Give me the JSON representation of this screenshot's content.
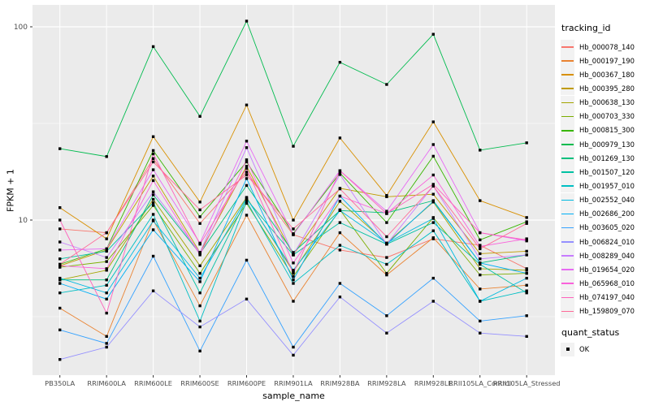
{
  "chart_data": {
    "type": "line",
    "title": "",
    "xlabel": "sample_name",
    "ylabel": "FPKM + 1",
    "y_scale": "log10",
    "ylim": [
      1.55,
      130
    ],
    "grid": "on",
    "legend_position": "right",
    "marker": "black-square",
    "y_ticks": [
      {
        "value": 10,
        "label": "10"
      },
      {
        "value": 100,
        "label": "100"
      }
    ],
    "y_minor_breaks": [
      3.162,
      31.62
    ],
    "categories": [
      "PB350LA",
      "RRIM600LA",
      "RRIM600LE",
      "RRIM600SE",
      "RRIM600PE",
      "RRIM901LA",
      "RRIM928BA",
      "RRIM928LA",
      "RRIM928LE",
      "RRII105LA_Control",
      "RRII105LA_Stressed"
    ],
    "series": [
      {
        "name": "Hb_000078_140",
        "color": "#F8766D",
        "values": [
          9.0,
          8.6,
          20.8,
          9.6,
          17.7,
          8.4,
          7.0,
          6.4,
          8.0,
          7.4,
          5.6
        ]
      },
      {
        "name": "Hb_000197_190",
        "color": "#EA8331",
        "values": [
          3.5,
          2.5,
          10.0,
          3.6,
          10.6,
          3.8,
          8.6,
          5.2,
          8.1,
          4.4,
          4.6
        ]
      },
      {
        "name": "Hb_000367_180",
        "color": "#D89000",
        "values": [
          11.6,
          8.0,
          27.0,
          12.4,
          39.4,
          10.0,
          26.6,
          13.4,
          32.2,
          12.6,
          10.3
        ]
      },
      {
        "name": "Hb_000395_280",
        "color": "#C09B00",
        "values": [
          5.8,
          7.0,
          16.9,
          6.8,
          19.0,
          6.6,
          14.6,
          13.2,
          13.6,
          6.7,
          6.9
        ]
      },
      {
        "name": "Hb_000638_130",
        "color": "#A3A500",
        "values": [
          4.9,
          5.5,
          12.8,
          5.8,
          13.1,
          5.4,
          12.5,
          7.6,
          12.4,
          5.6,
          5.5
        ]
      },
      {
        "name": "Hb_000703_330",
        "color": "#7CAE00",
        "values": [
          5.7,
          6.1,
          11.9,
          5.3,
          12.2,
          5.1,
          11.3,
          5.3,
          10.3,
          5.2,
          5.3
        ]
      },
      {
        "name": "Hb_000815_300",
        "color": "#39B600",
        "values": [
          5.9,
          7.1,
          22.9,
          10.4,
          20.0,
          8.5,
          17.5,
          9.7,
          21.4,
          7.9,
          9.8
        ]
      },
      {
        "name": "Hb_000979_130",
        "color": "#00BB4E",
        "values": [
          23.4,
          21.3,
          79.0,
          34.4,
          107.0,
          24.1,
          65.5,
          50.3,
          91.5,
          23.0,
          25.1
        ]
      },
      {
        "name": "Hb_001269_130",
        "color": "#00BF7D",
        "values": [
          4.9,
          4.9,
          13.5,
          6.7,
          15.1,
          6.8,
          11.2,
          10.9,
          12.6,
          6.0,
          6.6
        ]
      },
      {
        "name": "Hb_001507_120",
        "color": "#00C1A3",
        "values": [
          6.3,
          6.9,
          12.3,
          4.2,
          12.8,
          6.6,
          9.7,
          7.5,
          9.7,
          5.9,
          4.2
        ]
      },
      {
        "name": "Hb_001957_010",
        "color": "#00BFC4",
        "values": [
          4.2,
          4.6,
          10.7,
          3.0,
          12.5,
          4.7,
          7.4,
          5.9,
          8.8,
          3.8,
          4.3
        ]
      },
      {
        "name": "Hb_002552_040",
        "color": "#00BAE0",
        "values": [
          5.0,
          4.2,
          9.9,
          5.0,
          13.0,
          5.5,
          11.2,
          7.6,
          10.2,
          3.8,
          5.0
        ]
      },
      {
        "name": "Hb_002686_200",
        "color": "#00B0F6",
        "values": [
          4.7,
          3.9,
          8.9,
          4.8,
          16.4,
          4.9,
          13.3,
          7.5,
          12.5,
          6.0,
          5.3
        ]
      },
      {
        "name": "Hb_003605_020",
        "color": "#35A2FF",
        "values": [
          2.7,
          2.3,
          6.5,
          2.1,
          6.2,
          2.2,
          4.7,
          3.2,
          5.0,
          3.0,
          3.2
        ]
      },
      {
        "name": "Hb_006824_010",
        "color": "#9590FF",
        "values": [
          1.9,
          2.2,
          4.3,
          2.8,
          3.9,
          2.0,
          4.0,
          2.6,
          3.8,
          2.6,
          2.5
        ]
      },
      {
        "name": "Hb_008289_040",
        "color": "#C77CFF",
        "values": [
          7.7,
          6.4,
          14.0,
          6.8,
          23.7,
          6.6,
          17.2,
          7.5,
          15.0,
          6.3,
          6.6
        ]
      },
      {
        "name": "Hb_019654_020",
        "color": "#E76BF3",
        "values": [
          7.0,
          7.1,
          18.2,
          7.6,
          25.6,
          8.4,
          18.0,
          11.1,
          24.6,
          8.6,
          7.8
        ]
      },
      {
        "name": "Hb_065968_010",
        "color": "#FA62DB",
        "values": [
          5.8,
          5.6,
          16.0,
          6.6,
          20.5,
          6.0,
          13.3,
          10.8,
          17.1,
          7.3,
          8.0
        ]
      },
      {
        "name": "Hb_074197_040",
        "color": "#FF62BC",
        "values": [
          10.0,
          3.3,
          22.0,
          7.5,
          18.5,
          5.3,
          18.0,
          10.8,
          15.3,
          8.6,
          7.9
        ]
      },
      {
        "name": "Hb_159809_070",
        "color": "#FF6A98",
        "values": [
          5.9,
          8.6,
          20.0,
          11.3,
          17.1,
          9.0,
          14.5,
          8.2,
          15.0,
          7.1,
          9.6
        ]
      }
    ]
  },
  "legend": {
    "tracking_title": "tracking_id",
    "quant_title": "quant_status",
    "quant_items": [
      "OK"
    ]
  },
  "colors": {
    "panel_bg": "#EBEBEB",
    "grid": "#FFFFFF",
    "tick_text": "#4D4D4D",
    "tick_mark": "#333333",
    "marker": "#000000",
    "legend_key_bg": "#F2F2F2"
  }
}
